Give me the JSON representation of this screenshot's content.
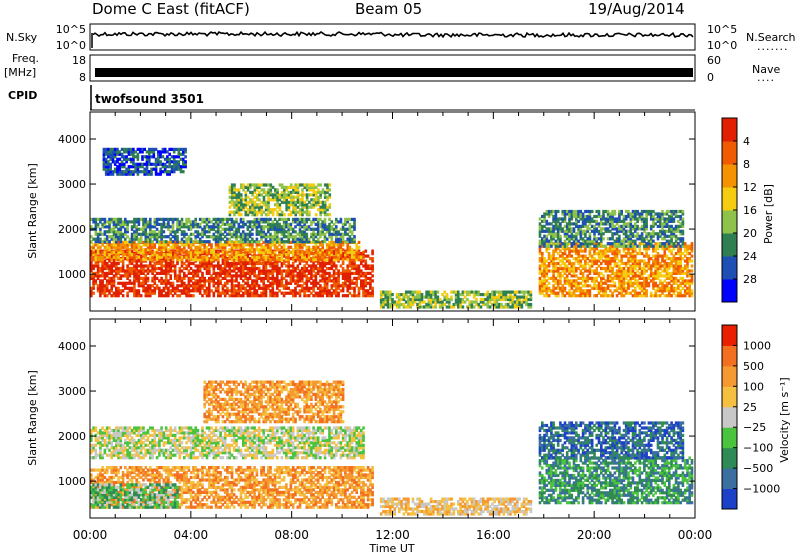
{
  "header": {
    "title": "Dome C East (fitACF)",
    "beam": "Beam 05",
    "date": "19/Aug/2014"
  },
  "sky_panel": {
    "left_label": "N.Sky",
    "right_label": "N.Search",
    "ticks_left": [
      "10^5",
      "10^0"
    ],
    "ticks_right": [
      "10^5",
      "10^0"
    ]
  },
  "freq_panel": {
    "left_label": "Freq.",
    "left_unit": "[MHz]",
    "left_ticks": [
      "18",
      "8"
    ],
    "right_label": "Nave",
    "right_ticks": [
      "60",
      "0"
    ]
  },
  "cpid": {
    "label": "CPID",
    "value": "twofsound 3501"
  },
  "x_axis": {
    "label": "Time UT",
    "ticks": [
      "00:00",
      "04:00",
      "08:00",
      "12:00",
      "16:00",
      "20:00",
      "00:00"
    ]
  },
  "chart_data": [
    {
      "type": "heatmap",
      "panel": "power",
      "ylabel": "Slant Range [km]",
      "yticks": [
        1000,
        2000,
        3000,
        4000
      ],
      "ylim": [
        180,
        4600
      ],
      "xlim_hours": [
        0,
        24
      ],
      "colorbar": {
        "label": "Power [dB]",
        "ticks": [
          "4",
          "8",
          "12",
          "16",
          "20",
          "24",
          "28"
        ],
        "colors": [
          "#0000ff",
          "#1d4fb5",
          "#2f7f52",
          "#8fc24a",
          "#f5cc10",
          "#f49200",
          "#f05a00",
          "#e02000"
        ]
      },
      "regions": [
        {
          "t0": 0.0,
          "t1": 11.2,
          "r0": 500,
          "r1": 1500,
          "level": 7
        },
        {
          "t0": 0.0,
          "t1": 10.8,
          "r0": 1300,
          "r1": 1700,
          "level": 5
        },
        {
          "t0": 0.0,
          "t1": 10.5,
          "r0": 1700,
          "r1": 2200,
          "level": 2
        },
        {
          "t0": 0.5,
          "t1": 3.8,
          "r0": 3200,
          "r1": 3800,
          "level": 1
        },
        {
          "t0": 5.5,
          "t1": 9.5,
          "r0": 2300,
          "r1": 3000,
          "level": 3
        },
        {
          "t0": 11.5,
          "t1": 17.5,
          "r0": 250,
          "r1": 600,
          "level": 3
        },
        {
          "t0": 17.8,
          "t1": 23.9,
          "r0": 500,
          "r1": 1700,
          "level": 5
        },
        {
          "t0": 17.8,
          "t1": 23.5,
          "r0": 1600,
          "r1": 2400,
          "level": 2
        }
      ]
    },
    {
      "type": "heatmap",
      "panel": "velocity",
      "ylabel": "Slant Range [km]",
      "yticks": [
        1000,
        2000,
        3000,
        4000
      ],
      "ylim": [
        180,
        4600
      ],
      "xlim_hours": [
        0,
        24
      ],
      "colorbar": {
        "label": "Velocity [m s⁻¹]",
        "ticks": [
          "1000",
          "500",
          "100",
          "25",
          "−25",
          "−100",
          "−500",
          "−1000"
        ],
        "colors": [
          "#1d40c8",
          "#3b6fa0",
          "#2f8a55",
          "#4ac43f",
          "#c8c8c8",
          "#f5c040",
          "#f59a30",
          "#f27020",
          "#e82000"
        ]
      },
      "regions": [
        {
          "t0": 0.0,
          "t1": 11.2,
          "r0": 400,
          "r1": 1300,
          "level": 6
        },
        {
          "t0": 0.0,
          "t1": 10.8,
          "r0": 1500,
          "r1": 2200,
          "level": 4
        },
        {
          "t0": 0.0,
          "t1": 3.5,
          "r0": 400,
          "r1": 900,
          "level": 3
        },
        {
          "t0": 4.5,
          "t1": 10.0,
          "r0": 2300,
          "r1": 3200,
          "level": 6
        },
        {
          "t0": 11.5,
          "t1": 17.5,
          "r0": 250,
          "r1": 600,
          "level": 5
        },
        {
          "t0": 17.8,
          "t1": 23.9,
          "r0": 500,
          "r1": 1500,
          "level": 2
        },
        {
          "t0": 17.8,
          "t1": 23.5,
          "r0": 1500,
          "r1": 2300,
          "level": 1
        }
      ]
    }
  ]
}
